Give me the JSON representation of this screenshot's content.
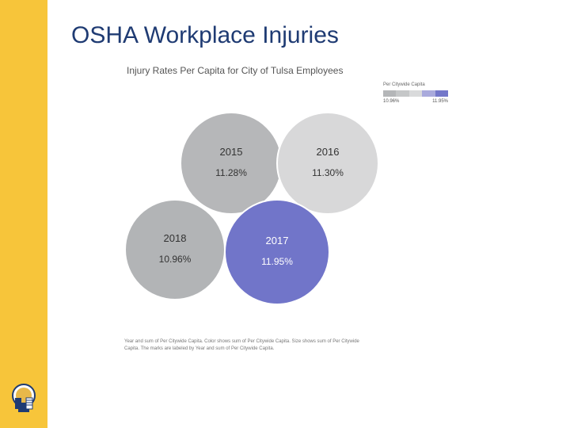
{
  "slide_title": "OSHA Workplace Injuries",
  "chart_data": {
    "type": "bubble",
    "title": "Injury Rates Per Capita for City of Tulsa Employees",
    "measure": "Per Citywide Capita",
    "color_min": "#b0b2b4",
    "color_max": "#7276c8",
    "bubbles": [
      {
        "label": "2015",
        "value_label": "11.28%",
        "value": 11.28
      },
      {
        "label": "2016",
        "value_label": "11.30%",
        "value": 11.3
      },
      {
        "label": "2018",
        "value_label": "10.96%",
        "value": 10.96
      },
      {
        "label": "2017",
        "value_label": "11.95%",
        "value": 11.95
      }
    ],
    "legend": {
      "title": "Per Citywide Capita",
      "min_label": "10.96%",
      "max_label": "11.95%",
      "swatches": [
        "#b4b6b8",
        "#c5c7c8",
        "#d9dadb",
        "#a9aadc",
        "#7377c9"
      ]
    },
    "caption": "Year and sum of Per Citywide Capita. Color shows sum of Per Citywide Capita. Size shows sum of Per Citywide Capita. The marks are labeled by Year and sum of Per Citywide Capita."
  },
  "colors": {
    "sidebar": "#f7c53a",
    "title": "#1f3b73",
    "bubble_2015": "#b6b7b9",
    "bubble_2016": "#d8d8d9",
    "bubble_2018": "#b2b4b6",
    "bubble_2017": "#7175c9"
  }
}
